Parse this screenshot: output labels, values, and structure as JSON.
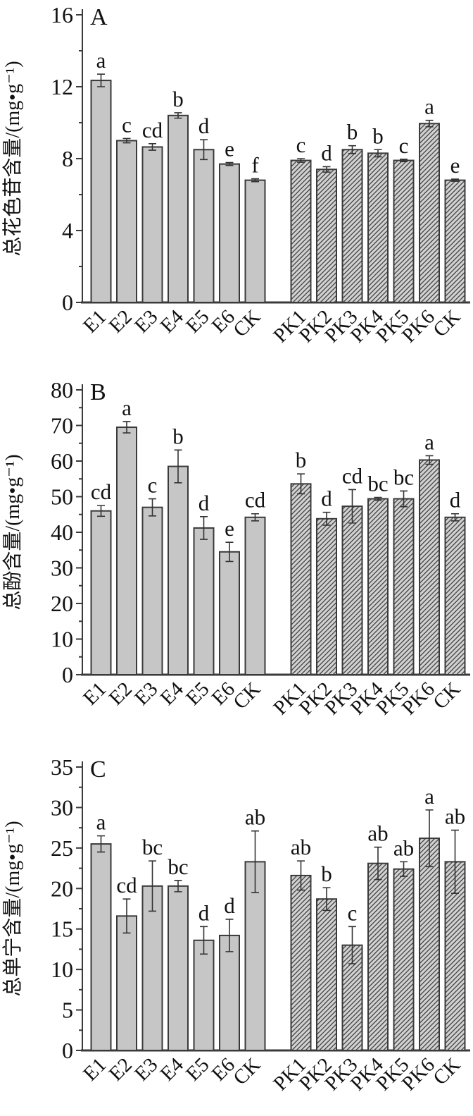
{
  "figure_title": "",
  "colors": {
    "bar_fill": "#c6c6c6",
    "bar_edge": "#3a3a3a",
    "hatch_bg": "#d2d2d2",
    "hatch_line": "#4a4a4a",
    "axis": "#3a3a3a",
    "text": "#111111"
  },
  "chart_data": [
    {
      "type": "bar",
      "panel_label": "A",
      "ylabel": "总花色苷含量/(mg•g⁻¹)",
      "ylim": [
        0,
        16
      ],
      "yticks": [
        0,
        4,
        8,
        12,
        16
      ],
      "minor_tick_step": 2,
      "grid": "off",
      "legend": "none",
      "groups": [
        {
          "name": "E",
          "bar_style": "solid",
          "categories": [
            "E1",
            "E2",
            "E3",
            "E4",
            "E5",
            "E6",
            "CK"
          ],
          "values": [
            12.35,
            9.0,
            8.65,
            10.4,
            8.5,
            7.7,
            6.8
          ],
          "errors": [
            0.35,
            0.12,
            0.18,
            0.15,
            0.55,
            0.08,
            0.08
          ],
          "letters": [
            "a",
            "c",
            "cd",
            "b",
            "d",
            "e",
            "f"
          ]
        },
        {
          "name": "PK",
          "bar_style": "hatched",
          "categories": [
            "PK1",
            "PK2",
            "PK3",
            "PK4",
            "PK5",
            "PK6",
            "CK"
          ],
          "values": [
            7.9,
            7.4,
            8.5,
            8.3,
            7.9,
            9.95,
            6.8
          ],
          "errors": [
            0.1,
            0.15,
            0.22,
            0.2,
            0.07,
            0.18,
            0.06
          ],
          "letters": [
            "c",
            "d",
            "b",
            "b",
            "c",
            "a",
            "e"
          ]
        }
      ]
    },
    {
      "type": "bar",
      "panel_label": "B",
      "ylabel": "总酚含量/(mg•g⁻¹)",
      "ylim": [
        0,
        80
      ],
      "yticks": [
        0,
        10,
        20,
        30,
        40,
        50,
        60,
        70,
        80
      ],
      "minor_tick_step": 5,
      "grid": "off",
      "legend": "none",
      "groups": [
        {
          "name": "E",
          "bar_style": "solid",
          "categories": [
            "E1",
            "E2",
            "E3",
            "E4",
            "E5",
            "E6",
            "CK"
          ],
          "values": [
            46.0,
            69.5,
            47.0,
            58.5,
            41.2,
            34.5,
            44.2
          ],
          "errors": [
            1.5,
            1.6,
            2.4,
            4.6,
            3.2,
            2.7,
            1.0
          ],
          "letters": [
            "cd",
            "a",
            "c",
            "b",
            "d",
            "e",
            "cd"
          ]
        },
        {
          "name": "PK",
          "bar_style": "hatched",
          "categories": [
            "PK1",
            "PK2",
            "PK3",
            "PK4",
            "PK5",
            "PK6",
            "CK"
          ],
          "values": [
            53.6,
            43.8,
            47.3,
            49.4,
            49.4,
            60.3,
            44.2
          ],
          "errors": [
            2.8,
            1.8,
            4.7,
            0.4,
            2.2,
            1.2,
            1.0
          ],
          "letters": [
            "b",
            "d",
            "cd",
            "bc",
            "bc",
            "a",
            "d"
          ]
        }
      ]
    },
    {
      "type": "bar",
      "panel_label": "C",
      "ylabel": "总单宁含量/(mg•g⁻¹)",
      "ylim": [
        0,
        35
      ],
      "yticks": [
        0,
        5,
        10,
        15,
        20,
        25,
        30,
        35
      ],
      "minor_tick_step": 2.5,
      "grid": "off",
      "legend": "none",
      "groups": [
        {
          "name": "E",
          "bar_style": "solid",
          "categories": [
            "E1",
            "E2",
            "E3",
            "E4",
            "E5",
            "E6",
            "CK"
          ],
          "values": [
            25.5,
            16.6,
            20.3,
            20.3,
            13.6,
            14.2,
            23.3
          ],
          "errors": [
            1.0,
            2.1,
            3.1,
            0.7,
            1.7,
            2.0,
            3.8
          ],
          "letters": [
            "a",
            "cd",
            "bc",
            "bc",
            "d",
            "d",
            "ab"
          ]
        },
        {
          "name": "PK",
          "bar_style": "hatched",
          "categories": [
            "PK1",
            "PK2",
            "PK3",
            "PK4",
            "PK5",
            "PK6",
            "CK"
          ],
          "values": [
            21.6,
            18.7,
            13.0,
            23.1,
            22.4,
            26.2,
            23.3
          ],
          "errors": [
            1.8,
            1.4,
            2.3,
            2.0,
            0.9,
            3.5,
            3.9
          ],
          "letters": [
            "ab",
            "b",
            "c",
            "ab",
            "ab",
            "a",
            "ab"
          ]
        }
      ]
    }
  ]
}
